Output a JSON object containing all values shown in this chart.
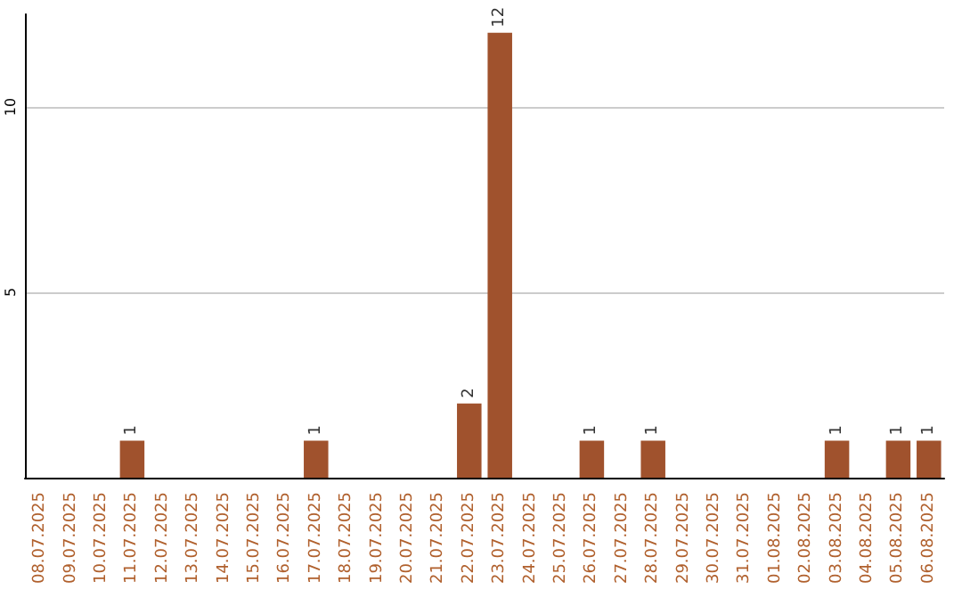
{
  "chart_data": {
    "type": "bar",
    "categories": [
      "08.07.2025",
      "09.07.2025",
      "10.07.2025",
      "11.07.2025",
      "12.07.2025",
      "13.07.2025",
      "14.07.2025",
      "15.07.2025",
      "16.07.2025",
      "17.07.2025",
      "18.07.2025",
      "19.07.2025",
      "20.07.2025",
      "21.07.2025",
      "22.07.2025",
      "23.07.2025",
      "24.07.2025",
      "25.07.2025",
      "26.07.2025",
      "27.07.2025",
      "28.07.2025",
      "29.07.2025",
      "30.07.2025",
      "31.07.2025",
      "01.08.2025",
      "02.08.2025",
      "03.08.2025",
      "04.08.2025",
      "05.08.2025",
      "06.08.2025"
    ],
    "values": [
      0,
      0,
      0,
      1,
      0,
      0,
      0,
      0,
      0,
      1,
      0,
      0,
      0,
      0,
      2,
      12,
      0,
      0,
      1,
      0,
      1,
      0,
      0,
      0,
      0,
      0,
      1,
      0,
      1,
      1
    ],
    "value_labels": [
      null,
      null,
      null,
      "1",
      null,
      null,
      null,
      null,
      null,
      "1",
      null,
      null,
      null,
      null,
      "2",
      "12",
      null,
      null,
      "1",
      null,
      "1",
      null,
      null,
      null,
      null,
      null,
      "1",
      null,
      "1",
      "1"
    ],
    "color": "#a0522d",
    "ylim": [
      0,
      12.5
    ],
    "yticks": [
      5,
      10
    ],
    "grid": "y"
  }
}
